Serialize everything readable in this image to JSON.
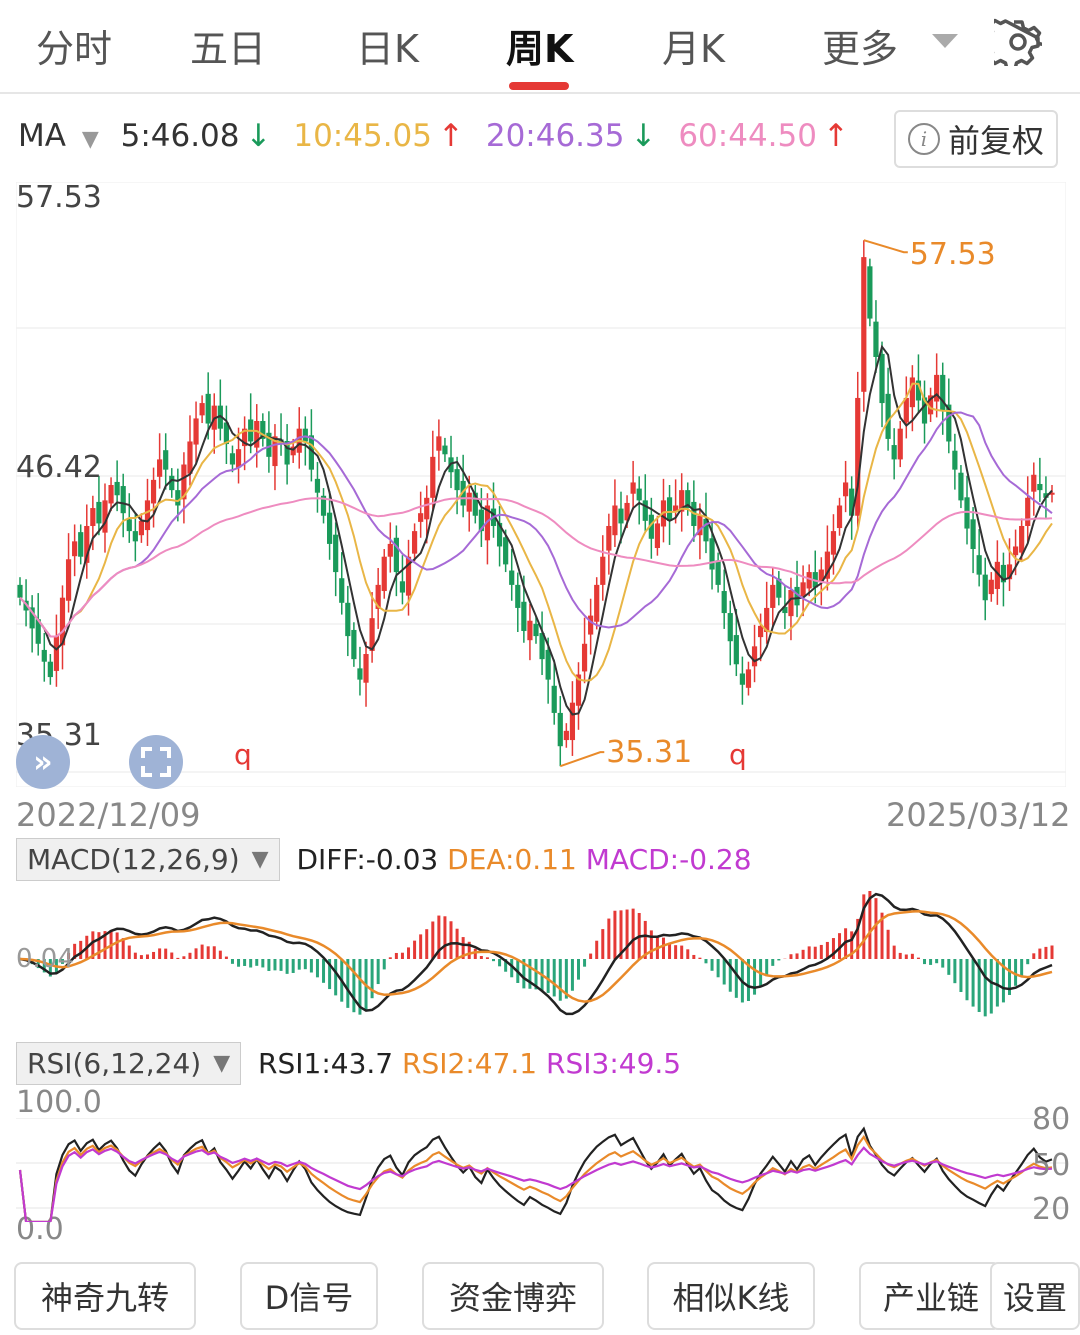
{
  "tabs": [
    {
      "label": "分时"
    },
    {
      "label": "五日"
    },
    {
      "label": "日K"
    },
    {
      "label": "周K"
    },
    {
      "label": "月K"
    },
    {
      "label": "更多"
    }
  ],
  "ma": {
    "label": "MA",
    "ma5": "5:46.08",
    "ma10": "10:45.05",
    "ma20": "20:46.35",
    "ma60": "60:44.50",
    "colors": {
      "ma5": "#333333",
      "ma10": "#e9b646",
      "ma20": "#a66ad6",
      "ma60": "#ee8cc0",
      "up": "#e53935",
      "down": "#1a9a5a"
    }
  },
  "adjust_button": {
    "label": "前复权"
  },
  "price_axis": {
    "high": "57.53",
    "mid": "46.42",
    "low": "35.31"
  },
  "annotations": {
    "max_label": "57.53",
    "min_label": "35.31",
    "marker_q": "q"
  },
  "date_range": {
    "start": "2022/12/09",
    "end": "2025/03/12"
  },
  "macd": {
    "selector": "MACD(12,26,9)",
    "diff": "DIFF:-0.03",
    "dea": "DEA:0.11",
    "macd": "MACD:-0.28",
    "zero_label": "0.04"
  },
  "rsi": {
    "selector": "RSI(6,12,24)",
    "rsi1": "RSI1:43.7",
    "rsi2": "RSI2:47.1",
    "rsi3": "RSI3:49.5",
    "top": "100.0",
    "bottom": "0.0",
    "r80": "80",
    "r50": "50",
    "r20": "20"
  },
  "bottom_tools": [
    {
      "label": "神奇九转"
    },
    {
      "label": "D信号"
    },
    {
      "label": "资金博弈"
    },
    {
      "label": "相似K线"
    },
    {
      "label": "产业链"
    },
    {
      "label": "设置"
    }
  ],
  "chart_data": {
    "type": "candlestick",
    "period": "weekly",
    "ylim": [
      35.31,
      57.53
    ],
    "start_date": "2022/12/09",
    "end_date": "2025/03/12",
    "close": [
      42.0,
      41.5,
      40.8,
      40.2,
      39.5,
      38.9,
      40.5,
      42.0,
      43.5,
      44.2,
      43.6,
      44.8,
      45.5,
      44.9,
      45.8,
      46.4,
      46.0,
      45.3,
      44.6,
      44.2,
      45.0,
      45.8,
      46.6,
      47.4,
      47.0,
      46.2,
      45.6,
      47.2,
      48.1,
      49.0,
      49.6,
      48.8,
      49.5,
      48.6,
      48.0,
      47.2,
      47.8,
      48.6,
      48.1,
      48.9,
      48.2,
      47.5,
      48.3,
      48.0,
      47.2,
      47.9,
      48.6,
      48.1,
      47.0,
      46.1,
      45.2,
      44.1,
      43.0,
      41.8,
      40.5,
      39.6,
      38.8,
      39.8,
      41.2,
      42.5,
      43.6,
      44.1,
      43.0,
      42.2,
      43.6,
      44.6,
      45.3,
      45.9,
      47.5,
      48.3,
      47.6,
      46.9,
      46.2,
      45.6,
      46.1,
      45.2,
      44.6,
      45.6,
      44.8,
      44.0,
      43.3,
      42.5,
      41.6,
      40.7,
      41.1,
      40.5,
      39.6,
      38.8,
      37.5,
      36.2,
      36.8,
      37.9,
      39.0,
      40.2,
      41.3,
      42.5,
      43.6,
      44.8,
      45.6,
      44.9,
      45.7,
      46.5,
      45.8,
      45.0,
      44.3,
      44.9,
      45.8,
      45.0,
      45.6,
      46.2,
      45.5,
      44.8,
      45.2,
      44.2,
      43.1,
      42.5,
      41.4,
      40.3,
      39.4,
      38.6,
      39.2,
      40.1,
      40.9,
      41.6,
      42.5,
      42.0,
      41.4,
      42.3,
      41.7,
      42.6,
      43.0,
      42.4,
      43.1,
      43.8,
      44.6,
      45.6,
      46.5,
      45.2,
      49.8,
      55.3,
      52.9,
      51.4,
      49.6,
      48.2,
      47.4,
      48.6,
      49.8,
      50.6,
      49.7,
      48.8,
      49.9,
      50.7,
      49.3,
      48.1,
      47.0,
      45.8,
      44.7,
      43.9,
      42.9,
      41.9,
      42.7,
      43.4,
      42.6,
      43.3,
      44.0,
      44.8,
      45.9,
      46.8,
      46.2,
      45.9,
      46.1
    ],
    "series": [
      {
        "name": "MA5",
        "value": 46.08
      },
      {
        "name": "MA10",
        "value": 45.05
      },
      {
        "name": "MA20",
        "value": 46.35
      },
      {
        "name": "MA60",
        "value": 44.5
      }
    ],
    "macd_latest": {
      "diff": -0.03,
      "dea": 0.11,
      "macd": -0.28
    },
    "rsi_latest": {
      "rsi1": 43.7,
      "rsi2": 47.1,
      "rsi3": 49.5
    }
  }
}
